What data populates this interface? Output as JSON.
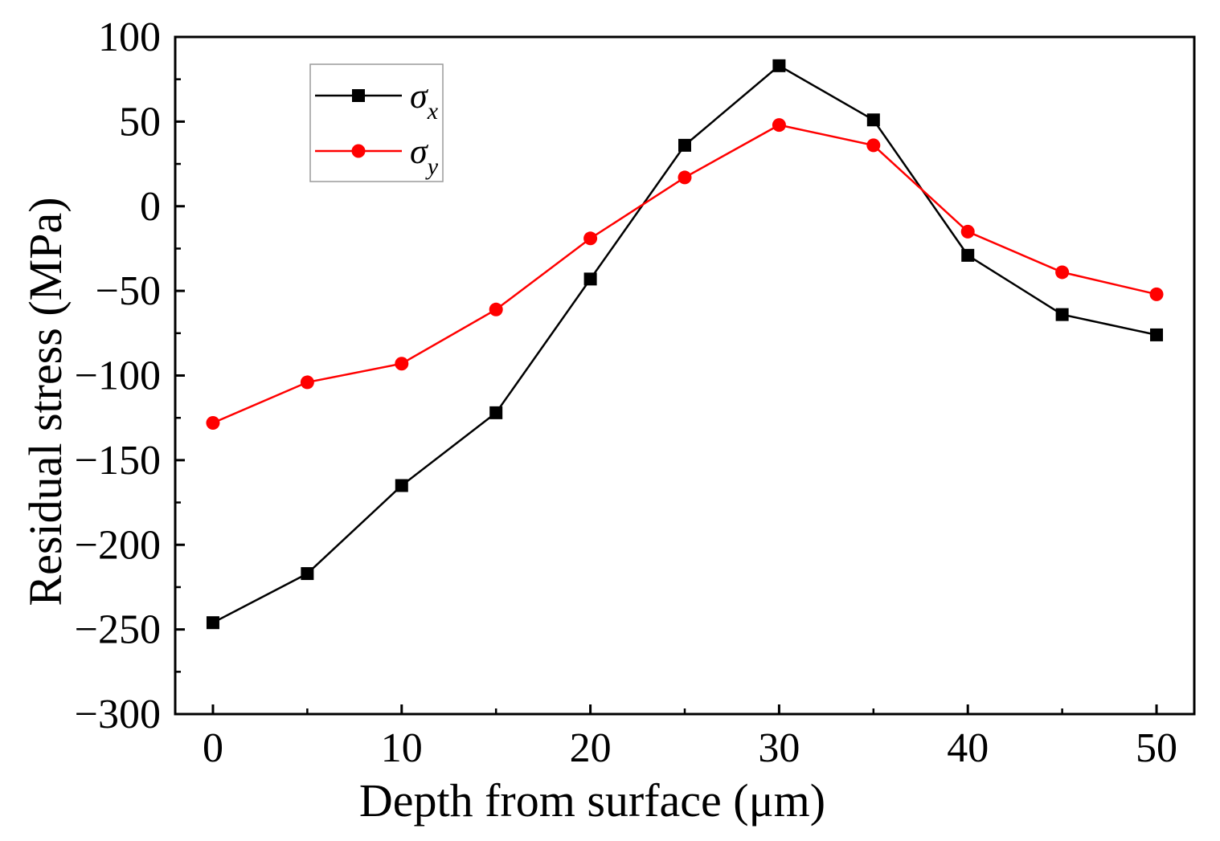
{
  "chart_data": {
    "type": "line",
    "title": "",
    "xlabel": "Depth from surface (μm)",
    "ylabel": "Residual stress (MPa)",
    "xlim": [
      -2,
      52
    ],
    "ylim": [
      -300,
      100
    ],
    "xticks": [
      0,
      10,
      20,
      30,
      40,
      50
    ],
    "yticks": [
      100,
      50,
      0,
      -50,
      -100,
      -150,
      -200,
      -250,
      -300
    ],
    "xtick_labels": [
      "0",
      "10",
      "20",
      "30",
      "40",
      "50"
    ],
    "ytick_labels": [
      "100",
      "50",
      "0",
      "−50",
      "−100",
      "−150",
      "−200",
      "−250",
      "−300"
    ],
    "x": [
      0,
      5,
      10,
      15,
      20,
      25,
      30,
      35,
      40,
      45,
      50
    ],
    "grid": false,
    "legend_position": "top-left",
    "series": [
      {
        "name": "σx",
        "symbol": "σ",
        "subscript": "x",
        "color": "#000000",
        "marker": "square",
        "values": [
          -246,
          -217,
          -165,
          -122,
          -43,
          36,
          83,
          51,
          -29,
          -64,
          -76
        ]
      },
      {
        "name": "σy",
        "symbol": "σ",
        "subscript": "y",
        "color": "#ff0000",
        "marker": "circle",
        "values": [
          -128,
          -104,
          -93,
          -61,
          -19,
          17,
          48,
          36,
          -15,
          -39,
          -52
        ]
      }
    ]
  }
}
